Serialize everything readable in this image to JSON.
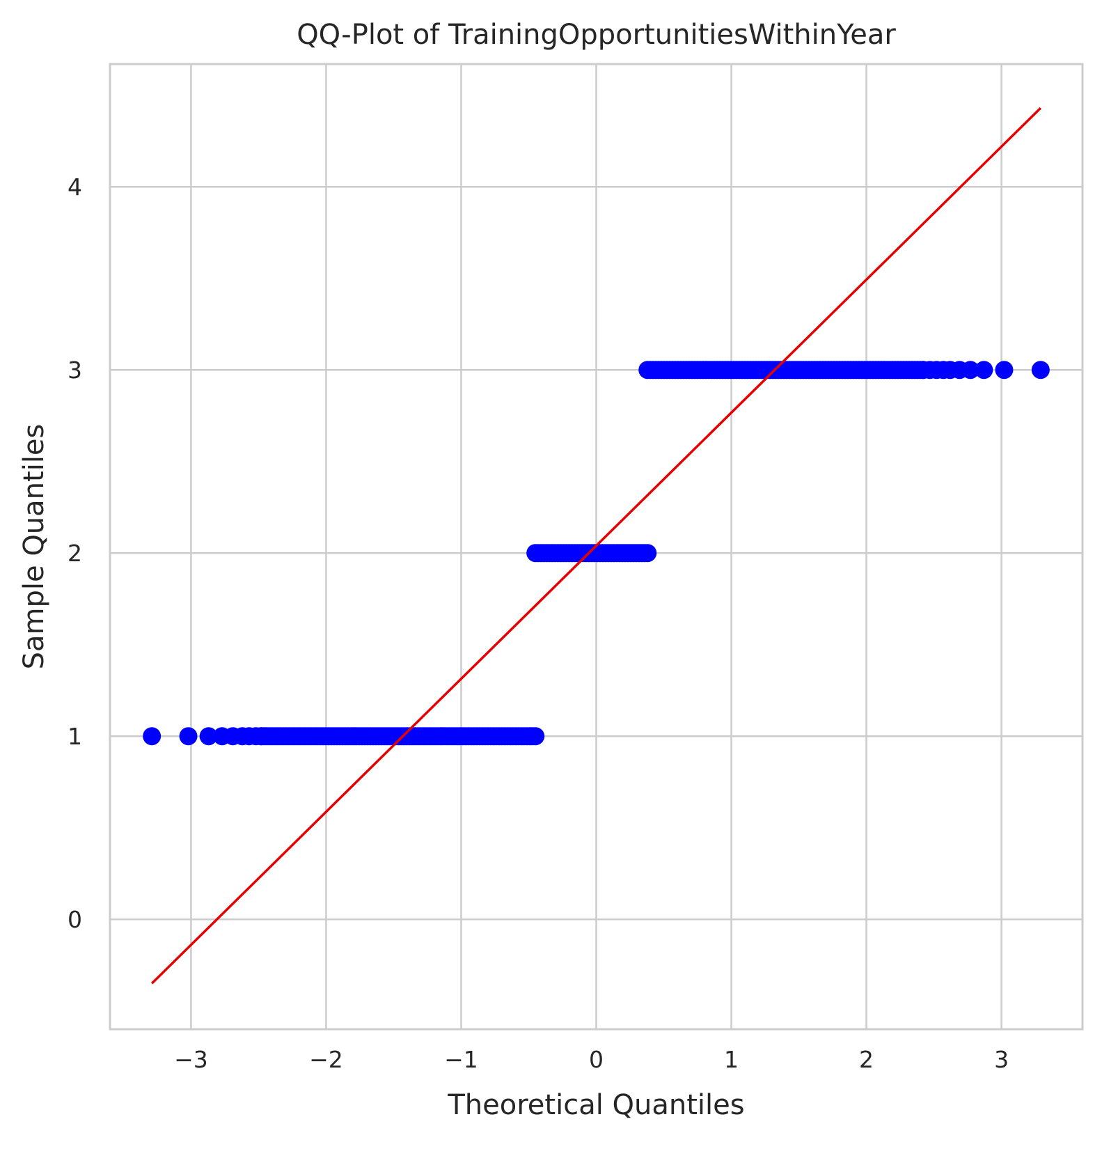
{
  "chart_data": {
    "type": "scatter",
    "title": "QQ-Plot of TrainingOpportunitiesWithinYear",
    "xlabel": "Theoretical Quantiles",
    "ylabel": "Sample Quantiles",
    "xlim": [
      -3.6,
      3.6
    ],
    "ylim": [
      -0.6,
      4.67
    ],
    "xticks": [
      -3,
      -2,
      -1,
      0,
      1,
      2,
      3
    ],
    "xtick_labels": [
      "−3",
      "−2",
      "−1",
      "0",
      "1",
      "2",
      "3"
    ],
    "yticks": [
      0,
      1,
      2,
      3,
      4
    ],
    "ytick_labels": [
      "0",
      "1",
      "2",
      "3",
      "4"
    ],
    "grid": true,
    "series": [
      {
        "marker_color": "#0000ff",
        "clusters": [
          {
            "y": 1,
            "isolated_x": [
              -3.29,
              -3.02,
              -2.87,
              -2.77,
              -2.69,
              -2.62,
              -2.57,
              -2.52,
              -2.48
            ],
            "dense_range": [
              -2.48,
              -0.45
            ]
          },
          {
            "y": 2,
            "isolated_x": [],
            "dense_range": [
              -0.45,
              0.38
            ]
          },
          {
            "y": 3,
            "isolated_x": [
              2.42,
              2.47,
              2.52,
              2.57,
              2.62,
              2.69,
              2.77,
              2.87,
              3.02,
              3.29
            ],
            "dense_range": [
              0.38,
              2.42
            ]
          }
        ]
      },
      {
        "line_color": "#e60000",
        "line": {
          "x": [
            -3.29,
            3.29
          ],
          "y": [
            -0.35,
            4.43
          ]
        }
      }
    ]
  }
}
